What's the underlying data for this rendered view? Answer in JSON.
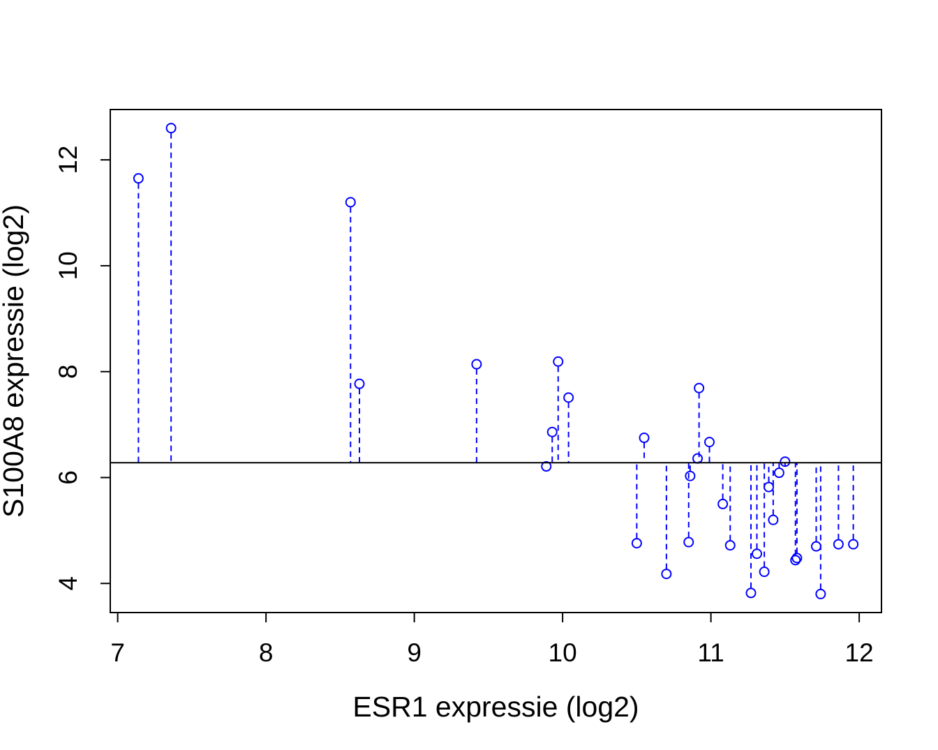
{
  "chart_data": {
    "type": "scatter",
    "xlabel": "ESR1 expressie (log2)",
    "ylabel": "S100A8 expressie (log2)",
    "xlim": [
      6.95,
      12.15
    ],
    "ylim": [
      3.45,
      12.95
    ],
    "xticks": [
      "7",
      "8",
      "9",
      "10",
      "11",
      "12"
    ],
    "yticks": [
      "4",
      "6",
      "8",
      "10",
      "12"
    ],
    "grid": false,
    "legend": "none",
    "reference_line_y": 6.28,
    "marker_color": "#0000ff",
    "points": [
      {
        "x": 7.14,
        "y": 11.65
      },
      {
        "x": 7.36,
        "y": 12.6
      },
      {
        "x": 8.57,
        "y": 11.2
      },
      {
        "x": 8.63,
        "y": 7.77
      },
      {
        "x": 9.42,
        "y": 8.14
      },
      {
        "x": 9.89,
        "y": 6.21
      },
      {
        "x": 9.93,
        "y": 6.86
      },
      {
        "x": 9.97,
        "y": 8.19
      },
      {
        "x": 10.04,
        "y": 7.51
      },
      {
        "x": 10.5,
        "y": 4.76
      },
      {
        "x": 10.55,
        "y": 6.75
      },
      {
        "x": 10.7,
        "y": 4.18
      },
      {
        "x": 10.85,
        "y": 4.78
      },
      {
        "x": 10.86,
        "y": 6.03
      },
      {
        "x": 10.91,
        "y": 6.36
      },
      {
        "x": 10.92,
        "y": 7.69
      },
      {
        "x": 10.99,
        "y": 6.67
      },
      {
        "x": 11.08,
        "y": 5.5
      },
      {
        "x": 11.13,
        "y": 4.72
      },
      {
        "x": 11.27,
        "y": 3.82
      },
      {
        "x": 11.31,
        "y": 4.56
      },
      {
        "x": 11.36,
        "y": 4.22
      },
      {
        "x": 11.39,
        "y": 5.82
      },
      {
        "x": 11.42,
        "y": 5.2
      },
      {
        "x": 11.46,
        "y": 6.09
      },
      {
        "x": 11.5,
        "y": 6.3
      },
      {
        "x": 11.57,
        "y": 4.44
      },
      {
        "x": 11.58,
        "y": 4.48
      },
      {
        "x": 11.71,
        "y": 4.7
      },
      {
        "x": 11.74,
        "y": 3.8
      },
      {
        "x": 11.86,
        "y": 4.74
      },
      {
        "x": 11.96,
        "y": 4.74
      }
    ]
  }
}
